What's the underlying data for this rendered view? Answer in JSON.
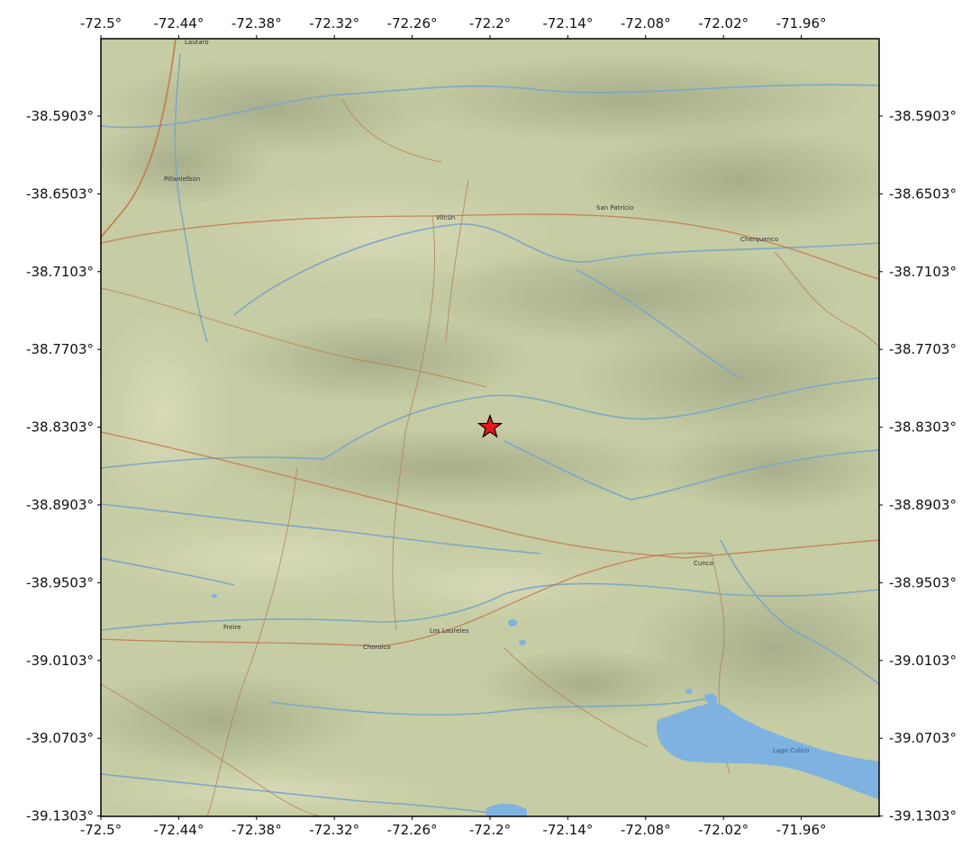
{
  "map": {
    "top_longitudes": [
      "-72.5°",
      "-72.44°",
      "-72.38°",
      "-72.32°",
      "-72.26°",
      "-72.2°",
      "-72.14°",
      "-72.08°",
      "-72.02°",
      "-71.96°"
    ],
    "bottom_longitudes": [
      "-72.5°",
      "-72.44°",
      "-72.38°",
      "-72.32°",
      "-72.26°",
      "-72.2°",
      "-72.14°",
      "-72.08°",
      "-72.02°",
      "-71.96°"
    ],
    "left_latitudes": [
      "-38.5903°",
      "-38.6503°",
      "-38.7103°",
      "-38.7703°",
      "-38.8303°",
      "-38.8903°",
      "-38.9503°",
      "-39.0103°",
      "-39.0703°",
      "-39.1303°"
    ],
    "right_latitudes": [
      "-38.5903°",
      "-38.6503°",
      "-38.7103°",
      "-38.7703°",
      "-38.8303°",
      "-38.8903°",
      "-38.9503°",
      "-39.0103°",
      "-39.0703°",
      "-39.1303°"
    ],
    "places": {
      "lautaro": "Lautaro",
      "pillanlelbun": "Pillanlelbún",
      "vilcun": "Vilcún",
      "san_patricio": "San Patricio",
      "cherquenco": "Cherquenco",
      "cunco": "Cunco",
      "freire": "Freire",
      "choroico": "Choroico",
      "los_laureles": "Los Laureles",
      "lake_colico": "Lago Colico"
    },
    "marker": {
      "type": "star",
      "lon": -72.2,
      "lat": -38.8303,
      "color": "#e31a1c"
    },
    "colors": {
      "land": "#c6cca3",
      "lake": "#7fb2e0",
      "river": "#7fa8c4",
      "road": "#b47a4e",
      "frame": "#000000"
    }
  }
}
